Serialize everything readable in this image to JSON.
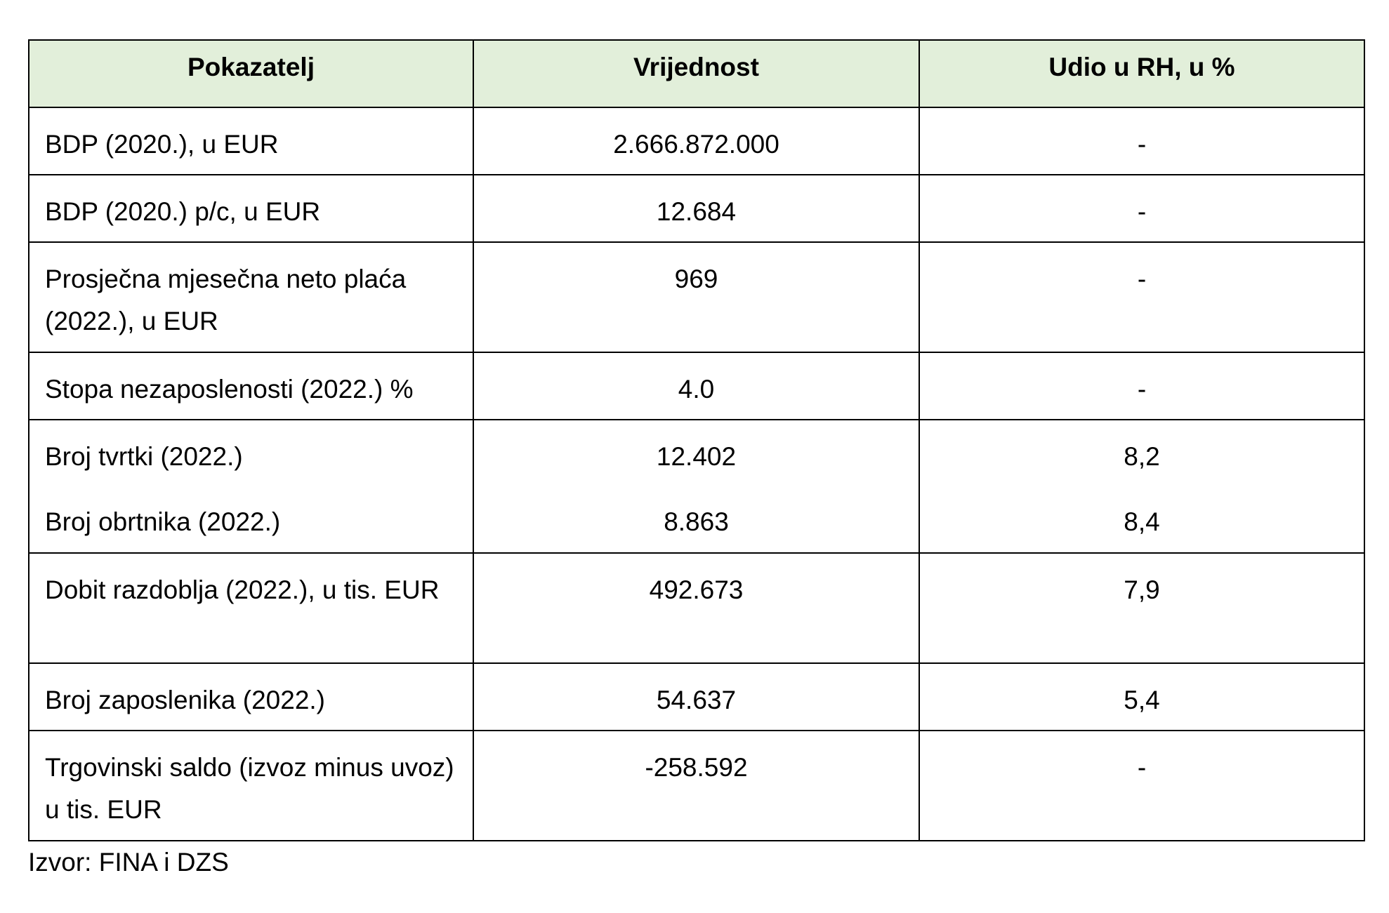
{
  "table": {
    "headers": [
      "Pokazatelj",
      "Vrijednost",
      "Udio u RH, u %"
    ],
    "rows": [
      {
        "label": "BDP (2020.), u EUR",
        "value": "2.666.872.000",
        "share": "-"
      },
      {
        "label": "BDP (2020.) p/c, u EUR",
        "value": "12.684",
        "share": "-"
      },
      {
        "label": "Prosječna mjesečna neto plaća (2022.), u EUR",
        "value": "969",
        "share": "-"
      },
      {
        "label": "Stopa nezaposlenosti (2022.) %",
        "value": "4.0",
        "share": "-"
      },
      {
        "label": "Broj tvrtki (2022.)",
        "value": "12.402",
        "share": "8,2",
        "label2": "Broj obrtnika (2022.)",
        "value2": "8.863",
        "share2": "8,4"
      },
      {
        "label": "Dobit razdoblja (2022.), u tis. EUR",
        "value": "492.673",
        "share": "7,9"
      },
      {
        "label": "Broj zaposlenika (2022.)",
        "value": "54.637",
        "share": "5,4"
      },
      {
        "label": "Trgovinski saldo (izvoz minus uvoz) u tis. EUR",
        "value": "-258.592",
        "share": "-"
      }
    ]
  },
  "source": "Izvor: FINA i DZS"
}
